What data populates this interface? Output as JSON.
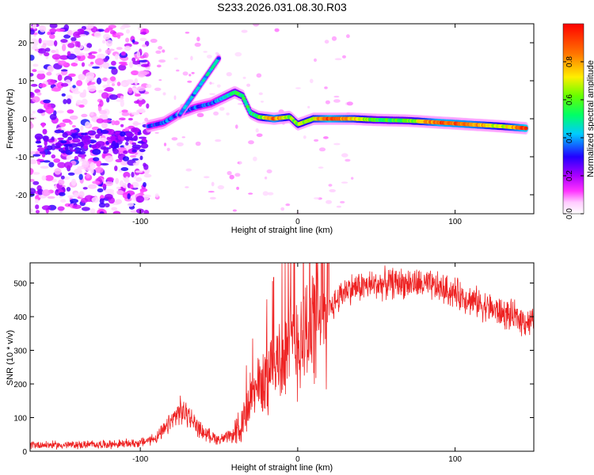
{
  "title": "S233.2026.031.08.30.R03",
  "chart_data": [
    {
      "type": "heatmap",
      "title": "S233.2026.031.08.30.R03",
      "xlabel": "Height of straight line (km)",
      "ylabel": "Frequency (Hz)",
      "xlim": [
        -170,
        150
      ],
      "ylim": [
        -25,
        25
      ],
      "xticks": [
        -100,
        0,
        100
      ],
      "yticks": [
        -20,
        -10,
        0,
        10,
        20
      ],
      "colorbar": {
        "label": "Normalized spectral amplitude",
        "range": [
          0,
          1
        ],
        "ticks": [
          0.0,
          0.2,
          0.4,
          0.6,
          0.8
        ],
        "tick_labels": [
          "0.0",
          "0.2",
          "0.4",
          "0.6",
          "0.8"
        ],
        "colormap": [
          "#ffffff",
          "#ff33ff",
          "#8800ff",
          "#0000ff",
          "#00ccff",
          "#00ff66",
          "#66ff00",
          "#ffee00",
          "#ff7700",
          "#ff0000"
        ]
      },
      "ridge": [
        {
          "x": -95,
          "f": -2.0,
          "a": 0.3
        },
        {
          "x": -85,
          "f": -1.0,
          "a": 0.33
        },
        {
          "x": -75,
          "f": 1.5,
          "a": 0.36
        },
        {
          "x": -65,
          "f": 3.0,
          "a": 0.34
        },
        {
          "x": -55,
          "f": 4.0,
          "a": 0.32
        },
        {
          "x": -45,
          "f": 6.0,
          "a": 0.45
        },
        {
          "x": -40,
          "f": 7.0,
          "a": 0.52
        },
        {
          "x": -35,
          "f": 6.0,
          "a": 0.55
        },
        {
          "x": -30,
          "f": 1.5,
          "a": 0.5
        },
        {
          "x": -25,
          "f": 0.5,
          "a": 0.55
        },
        {
          "x": -15,
          "f": 0.0,
          "a": 0.88
        },
        {
          "x": -5,
          "f": 0.5,
          "a": 0.6
        },
        {
          "x": 0,
          "f": -1.5,
          "a": 0.62
        },
        {
          "x": 10,
          "f": 0.0,
          "a": 0.7
        },
        {
          "x": 20,
          "f": 0.0,
          "a": 0.92
        },
        {
          "x": 35,
          "f": 0.0,
          "a": 0.75
        },
        {
          "x": 50,
          "f": -0.3,
          "a": 0.55
        },
        {
          "x": 70,
          "f": -0.5,
          "a": 0.58
        },
        {
          "x": 90,
          "f": -1.0,
          "a": 0.9
        },
        {
          "x": 110,
          "f": -1.5,
          "a": 0.85
        },
        {
          "x": 130,
          "f": -2.0,
          "a": 0.65
        },
        {
          "x": 145,
          "f": -2.5,
          "a": 0.95
        }
      ],
      "upper_arm": [
        {
          "x": -75,
          "f": 1.0,
          "a": 0.35
        },
        {
          "x": -70,
          "f": 4.0,
          "a": 0.38
        },
        {
          "x": -65,
          "f": 7.0,
          "a": 0.4
        },
        {
          "x": -60,
          "f": 10.0,
          "a": 0.42
        },
        {
          "x": -55,
          "f": 13.0,
          "a": 0.45
        },
        {
          "x": -50,
          "f": 16.0,
          "a": 0.4
        }
      ]
    },
    {
      "type": "line",
      "xlabel": "Height of straight line (km)",
      "ylabel": "SNR (10 * v/v)",
      "xlim": [
        -170,
        150
      ],
      "ylim": [
        0,
        560
      ],
      "xticks": [
        -100,
        0,
        100
      ],
      "yticks": [
        0,
        100,
        200,
        300,
        400,
        500
      ],
      "series": [
        {
          "name": "SNR",
          "color": "#ee2222",
          "x": [
            -170,
            -150,
            -130,
            -110,
            -100,
            -90,
            -85,
            -80,
            -75,
            -70,
            -65,
            -60,
            -55,
            -50,
            -45,
            -40,
            -35,
            -30,
            -25,
            -20,
            -15,
            -10,
            -5,
            0,
            5,
            10,
            15,
            20,
            25,
            30,
            40,
            50,
            60,
            70,
            80,
            90,
            100,
            110,
            120,
            130,
            140,
            150
          ],
          "values": [
            20,
            18,
            20,
            22,
            25,
            40,
            60,
            90,
            120,
            110,
            80,
            55,
            45,
            35,
            40,
            50,
            90,
            150,
            190,
            220,
            260,
            280,
            310,
            330,
            360,
            380,
            400,
            420,
            450,
            480,
            490,
            495,
            500,
            500,
            495,
            485,
            470,
            450,
            430,
            410,
            395,
            380
          ]
        }
      ]
    }
  ]
}
